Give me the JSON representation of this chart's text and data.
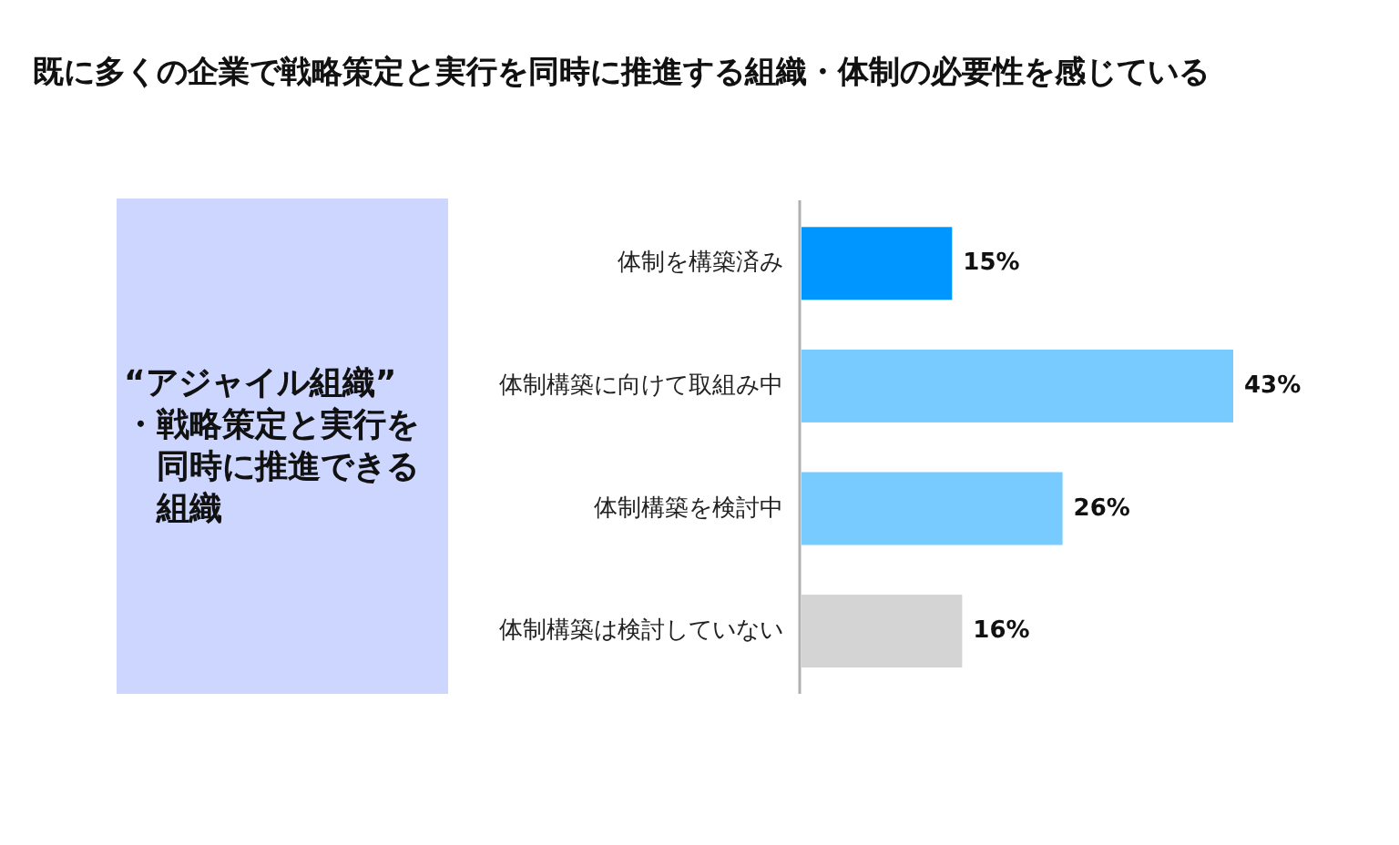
{
  "chart_data": [
    {
      "type": "other",
      "title": "“アジャイル組織”",
      "annotations": [
        "・戦略策定と実行を同時に推進できる組織"
      ]
    },
    {
      "type": "bar",
      "title": "既に多くの企業で戦略策定と実行を同時に推進する組織・体制の必要性を感じている",
      "orientation": "horizontal",
      "categories": [
        "体制を構築済み",
        "体制構築に向けて取組み中",
        "体制構築を検討中",
        "体制構築は検討していない"
      ],
      "values": [
        15,
        43,
        26,
        16
      ],
      "colors": [
        "#0096ff",
        "#78cbff",
        "#78cbff",
        "#d4d4d4"
      ],
      "value_labels": [
        "15%",
        "43%",
        "26%",
        "16%"
      ]
    }
  ]
}
